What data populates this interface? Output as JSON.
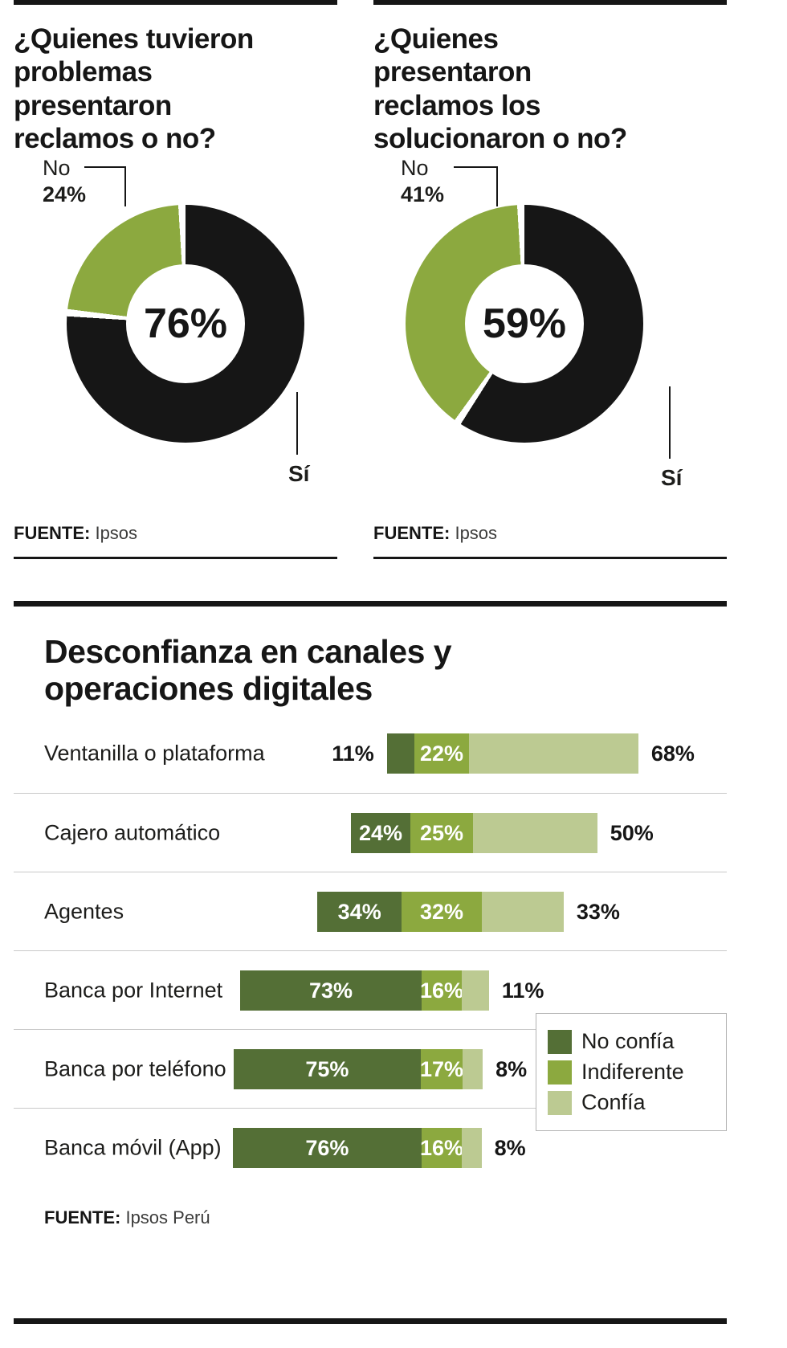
{
  "colors": {
    "black": "#161616",
    "green_mid": "#8ca93f",
    "green_dark": "#546f36",
    "green_light": "#bcca92",
    "separator": "#c9c9c9",
    "legend_border": "#b3b3b3",
    "source_text": "#3c3c3b"
  },
  "sections": {
    "donuts": [
      {
        "title_display": "¿Quienes tuvieron\nproblemas\npresentaron\nreclamos o no?",
        "no_label": "No",
        "no_value": "24%",
        "yes_label": "Sí",
        "source_label": "FUENTE:",
        "source_value": "Ipsos"
      },
      {
        "title_display": "¿Quienes\npresentaron\nreclamos los\nsolucionaron o no?",
        "no_label": "No",
        "no_value": "41%",
        "yes_label": "Sí",
        "source_label": "FUENTE:",
        "source_value": "Ipsos"
      }
    ],
    "bar_section": {
      "title_display": "Desconfianza en canales y\noperaciones digitales",
      "source_label": "FUENTE:",
      "source_value": "Ipsos Perú"
    }
  },
  "chart_data": [
    {
      "type": "pie",
      "style": "donut",
      "title": "¿Quienes tuvieron problemas presentaron reclamos o no?",
      "center_label": "76%",
      "slices": [
        {
          "label": "Sí",
          "value": 76,
          "color": "#161616"
        },
        {
          "label": "No",
          "value": 24,
          "color": "#8ca93f"
        }
      ],
      "source": "Ipsos"
    },
    {
      "type": "pie",
      "style": "donut",
      "title": "¿Quienes presentaron reclamos los solucionaron o no?",
      "center_label": "59%",
      "slices": [
        {
          "label": "Sí",
          "value": 59,
          "color": "#161616"
        },
        {
          "label": "No",
          "value": 41,
          "color": "#8ca93f"
        }
      ],
      "source": "Ipsos"
    },
    {
      "type": "bar",
      "orientation": "horizontal-stacked",
      "title": "Desconfianza en canales y operaciones digitales",
      "series_names": [
        "No confía",
        "Indiferente",
        "Confía"
      ],
      "series_colors": [
        "#546f36",
        "#8ca93f",
        "#bcca92"
      ],
      "unit": "%",
      "rows": [
        {
          "label": "Ventanilla o plataforma",
          "values": [
            11,
            22,
            68
          ]
        },
        {
          "label": "Cajero automático",
          "values": [
            24,
            25,
            50
          ]
        },
        {
          "label": "Agentes",
          "values": [
            34,
            32,
            33
          ]
        },
        {
          "label": "Banca por Internet",
          "values": [
            73,
            16,
            11
          ]
        },
        {
          "label": "Banca por teléfono",
          "values": [
            75,
            17,
            8
          ]
        },
        {
          "label": "Banca móvil (App)",
          "values": [
            76,
            16,
            8
          ]
        }
      ],
      "source": "Ipsos Perú"
    }
  ]
}
